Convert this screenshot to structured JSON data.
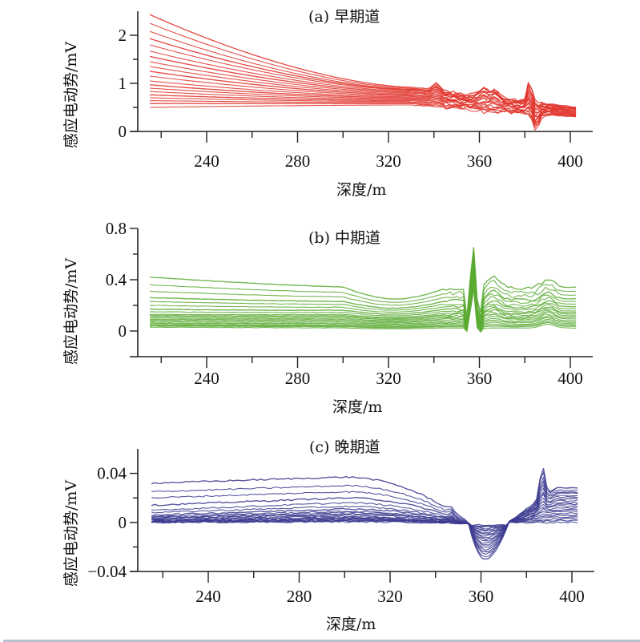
{
  "chart_data": [
    {
      "id": "a",
      "type": "line",
      "title": "(a) 早期道",
      "xlabel": "深度/m",
      "ylabel": "感应电动势/mV",
      "xlim": [
        205,
        412
      ],
      "ylim": [
        0,
        2.5
      ],
      "xticks": [
        240,
        280,
        320,
        360,
        400
      ],
      "xtick_labels": [
        "240",
        "280",
        "320",
        "360",
        "400"
      ],
      "xminor": [
        220,
        260,
        300,
        340,
        380
      ],
      "yticks": [
        0,
        1,
        2
      ],
      "ytick_labels": [
        "0",
        "1",
        "2"
      ],
      "yminor": [
        0.5,
        1.5
      ],
      "color": "#e0322a",
      "x_range_data": [
        215,
        403
      ],
      "n_series": 20,
      "series_start_values": [
        2.43,
        2.25,
        2.08,
        1.93,
        1.8,
        1.67,
        1.56,
        1.45,
        1.35,
        1.25,
        1.15,
        1.05,
        0.97,
        0.9,
        0.83,
        0.76,
        0.7,
        0.64,
        0.58,
        0.5
      ],
      "series_mid_values_at_330": [
        0.92,
        0.9,
        0.88,
        0.87,
        0.86,
        0.84,
        0.82,
        0.8,
        0.78,
        0.76,
        0.74,
        0.72,
        0.7,
        0.68,
        0.66,
        0.64,
        0.62,
        0.6,
        0.58,
        0.55
      ],
      "end_value_range": [
        0.3,
        0.5
      ],
      "anomalies": [
        {
          "depth": 341,
          "peak": 1.05
        },
        {
          "depth": 362,
          "peak": 1.2
        },
        {
          "depth": 367,
          "peak": 1.2
        },
        {
          "depth": 382,
          "peak": 1.35
        },
        {
          "depth": 385,
          "trough": 0.1
        }
      ],
      "grid": false,
      "legend": "none"
    },
    {
      "id": "b",
      "type": "line",
      "title": "(b) 中期道",
      "xlabel": "深度/m",
      "ylabel": "感应电动势/mV",
      "xlim": [
        205,
        412
      ],
      "ylim": [
        -0.2,
        0.8
      ],
      "xticks": [
        240,
        280,
        320,
        360,
        400
      ],
      "xtick_labels": [
        "240",
        "280",
        "320",
        "360",
        "400"
      ],
      "xminor": [
        220,
        260,
        300,
        340,
        380
      ],
      "yticks": [
        0,
        0.4,
        0.8
      ],
      "ytick_labels": [
        "0",
        "0.4",
        "0.8"
      ],
      "yminor": [
        -0.2,
        0.2,
        0.6
      ],
      "color": "#5aaa32",
      "x_range_data": [
        215,
        403
      ],
      "n_series": 20,
      "series_start_values": [
        0.42,
        0.36,
        0.31,
        0.26,
        0.23,
        0.2,
        0.17,
        0.15,
        0.13,
        0.12,
        0.11,
        0.1,
        0.09,
        0.08,
        0.07,
        0.06,
        0.05,
        0.045,
        0.04,
        0.03
      ],
      "end_value_range": [
        0.02,
        0.29
      ],
      "anomalies": [
        {
          "depth": 355,
          "trough": -0.02
        },
        {
          "depth": 357,
          "peak": 0.72
        },
        {
          "depth": 360,
          "trough": -0.03
        },
        {
          "depth": 366,
          "peak": 0.4
        },
        {
          "depth": 390,
          "peak": 0.36
        }
      ],
      "grid": false,
      "legend": "none"
    },
    {
      "id": "c",
      "type": "line",
      "title": "(c) 晚期道",
      "xlabel": "深度/m",
      "ylabel": "感应电动势/mV",
      "xlim": [
        205,
        412
      ],
      "ylim": [
        -0.04,
        0.06
      ],
      "xticks": [
        240,
        280,
        320,
        360,
        400
      ],
      "xtick_labels": [
        "240",
        "280",
        "320",
        "360",
        "400"
      ],
      "xminor": [
        220,
        260,
        300,
        340,
        380
      ],
      "yticks": [
        -0.04,
        0,
        0.04
      ],
      "ytick_labels": [
        "−0.04",
        "0",
        "0.04"
      ],
      "yminor": [
        -0.02,
        0.02
      ],
      "color": "#3b3a8f",
      "x_range_data": [
        215,
        403
      ],
      "n_series": 20,
      "series_start_values": [
        0.032,
        0.025,
        0.02,
        0.014,
        0.01,
        0.008,
        0.006,
        0.005,
        0.004,
        0.0035,
        0.003,
        0.0025,
        0.002,
        0.0015,
        0.001,
        0.0008,
        0.0005,
        0.0003,
        0.0001,
        0.0
      ],
      "series_plateau_values_at_300": [
        0.037,
        0.03,
        0.025,
        0.02,
        0.016,
        0.013,
        0.011,
        0.009,
        0.008,
        0.007,
        0.006,
        0.005,
        0.004,
        0.0035,
        0.003,
        0.0025,
        0.002,
        0.0015,
        0.001,
        0.0005
      ],
      "end_value_range": [
        0.0,
        0.028
      ],
      "anomalies": [
        {
          "depth": 347,
          "peak": 0.022
        },
        {
          "depth": 360,
          "trough": -0.028
        },
        {
          "depth": 387,
          "peak": 0.053
        }
      ],
      "grid": false,
      "legend": "none"
    }
  ]
}
